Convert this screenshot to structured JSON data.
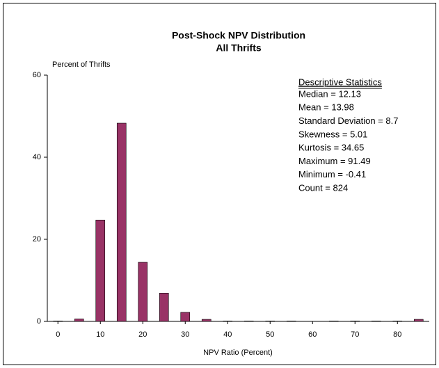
{
  "chart_data": {
    "type": "bar",
    "title": "Post-Shock NPV Distribution",
    "subtitle": "All Thrifts",
    "y_label": "Percent of Thrifts",
    "x_label": "NPV Ratio (Percent)",
    "x": [
      0,
      5,
      10,
      15,
      20,
      25,
      30,
      35,
      40,
      45,
      50,
      55,
      60,
      65,
      70,
      75,
      80,
      85
    ],
    "values": [
      0.1,
      0.6,
      24.7,
      48.3,
      14.4,
      6.9,
      2.2,
      0.5,
      0.1,
      0.1,
      0.1,
      0.1,
      0,
      0.1,
      0.1,
      0.1,
      0.1,
      0.5
    ],
    "color": "#993366",
    "xlim": [
      -2.5,
      87.5
    ],
    "xticks": [
      0,
      10,
      20,
      30,
      40,
      50,
      60,
      70,
      80
    ],
    "ylim": [
      0,
      60
    ],
    "yticks": [
      0,
      20,
      40,
      60
    ],
    "stats_title": "Descriptive Statistics",
    "stats": [
      "Median = 12.13",
      "Mean = 13.98",
      "Standard Deviation = 8.7",
      "Skewness = 5.01",
      "Kurtosis = 34.65",
      "Maximum = 91.49",
      "Minimum = -0.41",
      "Count = 824"
    ]
  }
}
